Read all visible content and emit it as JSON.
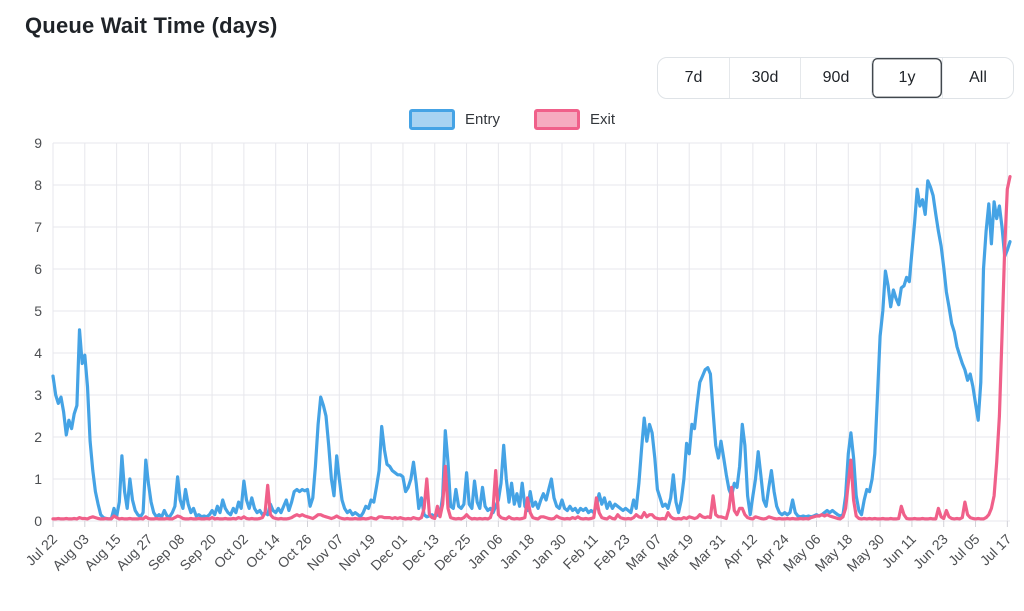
{
  "page": {
    "title": "Queue Wait Time (days)"
  },
  "range_selector": {
    "options": [
      "7d",
      "30d",
      "90d",
      "1y",
      "All"
    ],
    "active": "1y"
  },
  "colors": {
    "entry_line": "#45a3e5",
    "entry_fill": "#a8d3f2",
    "exit_line": "#f0608a",
    "exit_fill": "#f6abc0",
    "grid": "#e7e7ec",
    "tick_text": "#4d4f52",
    "tick_mark": "#d2d2d8"
  },
  "chart_data": {
    "type": "line",
    "title": "Queue Wait Time (days)",
    "xlabel": "",
    "ylabel": "",
    "ylim": [
      0,
      9
    ],
    "y_ticks": [
      0,
      1,
      2,
      3,
      4,
      5,
      6,
      7,
      8,
      9
    ],
    "grid": true,
    "legend_position": "top",
    "x_unit": "day",
    "points_per_tick": 12,
    "x_tick_labels": [
      "Jul 22",
      "Aug 03",
      "Aug 15",
      "Aug 27",
      "Sep 08",
      "Sep 20",
      "Oct 02",
      "Oct 14",
      "Oct 26",
      "Nov 07",
      "Nov 19",
      "Dec 01",
      "Dec 13",
      "Dec 25",
      "Jan 06",
      "Jan 18",
      "Jan 30",
      "Feb 11",
      "Feb 23",
      "Mar 07",
      "Mar 19",
      "Mar 31",
      "Apr 12",
      "Apr 24",
      "May 06",
      "May 18",
      "May 30",
      "Jun 11",
      "Jun 23",
      "Jul 05",
      "Jul 17"
    ],
    "series": [
      {
        "name": "Entry",
        "color": "#45a3e5",
        "fill_color": "#a8d3f2",
        "values": [
          3.45,
          3.0,
          2.8,
          2.95,
          2.6,
          2.05,
          2.4,
          2.2,
          2.55,
          2.75,
          4.55,
          3.75,
          3.95,
          3.2,
          1.9,
          1.2,
          0.7,
          0.4,
          0.15,
          0.08,
          0.06,
          0.05,
          0.05,
          0.3,
          0.1,
          0.45,
          1.55,
          0.7,
          0.3,
          1.0,
          0.5,
          0.25,
          0.15,
          0.1,
          0.2,
          1.45,
          0.9,
          0.45,
          0.2,
          0.1,
          0.15,
          0.1,
          0.25,
          0.12,
          0.1,
          0.2,
          0.35,
          1.05,
          0.5,
          0.3,
          0.75,
          0.4,
          0.2,
          0.3,
          0.12,
          0.15,
          0.1,
          0.12,
          0.1,
          0.15,
          0.25,
          0.15,
          0.35,
          0.2,
          0.5,
          0.3,
          0.2,
          0.15,
          0.3,
          0.2,
          0.45,
          0.3,
          0.95,
          0.5,
          0.3,
          0.55,
          0.3,
          0.2,
          0.25,
          0.15,
          0.2,
          0.15,
          0.4,
          0.25,
          0.2,
          0.3,
          0.2,
          0.35,
          0.5,
          0.25,
          0.45,
          0.7,
          0.75,
          0.7,
          0.75,
          0.72,
          0.75,
          0.35,
          0.55,
          1.3,
          2.3,
          2.95,
          2.75,
          2.5,
          1.8,
          1.0,
          0.6,
          1.55,
          1.0,
          0.5,
          0.3,
          0.2,
          0.25,
          0.15,
          0.2,
          0.15,
          0.1,
          0.2,
          0.35,
          0.3,
          0.5,
          0.45,
          0.8,
          1.2,
          2.25,
          1.7,
          1.35,
          1.3,
          1.2,
          1.15,
          1.1,
          1.1,
          1.05,
          0.7,
          0.8,
          1.0,
          1.4,
          0.9,
          0.3,
          0.55,
          0.15,
          0.1,
          0.12,
          0.15,
          0.1,
          0.15,
          0.12,
          0.6,
          2.15,
          1.4,
          0.35,
          0.3,
          0.75,
          0.35,
          0.3,
          0.4,
          1.15,
          0.4,
          0.3,
          0.95,
          0.45,
          0.3,
          0.8,
          0.35,
          0.25,
          0.3,
          0.2,
          0.35,
          0.5,
          0.9,
          1.8,
          1.0,
          0.45,
          0.9,
          0.4,
          0.65,
          0.35,
          0.9,
          0.35,
          0.25,
          0.7,
          0.35,
          0.45,
          0.3,
          0.5,
          0.65,
          0.5,
          0.75,
          1.0,
          0.55,
          0.35,
          0.3,
          0.5,
          0.3,
          0.25,
          0.35,
          0.25,
          0.3,
          0.2,
          0.3,
          0.25,
          0.3,
          0.2,
          0.25,
          0.2,
          0.35,
          0.65,
          0.4,
          0.55,
          0.3,
          0.45,
          0.3,
          0.4,
          0.35,
          0.3,
          0.25,
          0.3,
          0.25,
          0.2,
          0.5,
          0.3,
          0.9,
          1.7,
          2.45,
          1.9,
          2.3,
          2.1,
          1.5,
          0.75,
          0.55,
          0.35,
          0.4,
          0.3,
          0.55,
          1.1,
          0.45,
          0.2,
          0.5,
          1.0,
          1.85,
          1.6,
          2.3,
          2.2,
          2.8,
          3.3,
          3.45,
          3.6,
          3.65,
          3.5,
          2.6,
          1.8,
          1.5,
          1.9,
          1.5,
          1.1,
          0.75,
          0.6,
          0.9,
          0.8,
          1.3,
          2.3,
          1.8,
          0.6,
          0.15,
          0.6,
          1.0,
          1.65,
          1.1,
          0.5,
          0.35,
          0.8,
          1.2,
          0.7,
          0.35,
          0.2,
          0.15,
          0.2,
          0.15,
          0.2,
          0.5,
          0.2,
          0.12,
          0.1,
          0.12,
          0.1,
          0.12,
          0.1,
          0.12,
          0.15,
          0.12,
          0.15,
          0.2,
          0.25,
          0.2,
          0.25,
          0.2,
          0.15,
          0.12,
          0.15,
          0.6,
          1.6,
          2.1,
          1.5,
          0.6,
          0.25,
          0.15,
          0.5,
          0.75,
          0.7,
          1.0,
          1.6,
          3.0,
          4.4,
          5.0,
          5.95,
          5.6,
          5.1,
          5.5,
          5.3,
          5.15,
          5.55,
          5.6,
          5.8,
          5.7,
          6.4,
          7.1,
          7.9,
          7.5,
          7.65,
          7.3,
          8.1,
          7.95,
          7.75,
          7.3,
          6.9,
          6.55,
          6.05,
          5.45,
          5.1,
          4.7,
          4.5,
          4.15,
          3.95,
          3.75,
          3.6,
          3.35,
          3.5,
          3.2,
          2.8,
          2.4,
          3.3,
          6.0,
          6.9,
          7.55,
          6.6,
          7.6,
          7.2,
          7.5,
          7.0,
          6.3,
          6.45,
          6.65
        ]
      },
      {
        "name": "Exit",
        "color": "#f0608a",
        "fill_color": "#f6abc0",
        "values": [
          0.05,
          0.05,
          0.06,
          0.05,
          0.05,
          0.06,
          0.05,
          0.05,
          0.06,
          0.05,
          0.08,
          0.06,
          0.06,
          0.05,
          0.08,
          0.1,
          0.08,
          0.06,
          0.05,
          0.05,
          0.06,
          0.05,
          0.05,
          0.12,
          0.08,
          0.05,
          0.06,
          0.05,
          0.05,
          0.06,
          0.05,
          0.05,
          0.05,
          0.06,
          0.05,
          0.1,
          0.06,
          0.05,
          0.05,
          0.06,
          0.05,
          0.05,
          0.05,
          0.06,
          0.05,
          0.05,
          0.08,
          0.12,
          0.1,
          0.06,
          0.05,
          0.05,
          0.06,
          0.05,
          0.05,
          0.06,
          0.05,
          0.05,
          0.06,
          0.05,
          0.08,
          0.05,
          0.06,
          0.05,
          0.05,
          0.06,
          0.05,
          0.05,
          0.06,
          0.05,
          0.08,
          0.06,
          0.1,
          0.06,
          0.05,
          0.06,
          0.05,
          0.05,
          0.06,
          0.08,
          0.2,
          0.85,
          0.15,
          0.08,
          0.06,
          0.05,
          0.06,
          0.05,
          0.05,
          0.06,
          0.08,
          0.12,
          0.15,
          0.12,
          0.15,
          0.12,
          0.1,
          0.08,
          0.06,
          0.1,
          0.15,
          0.15,
          0.12,
          0.1,
          0.08,
          0.06,
          0.08,
          0.12,
          0.08,
          0.06,
          0.05,
          0.06,
          0.05,
          0.05,
          0.06,
          0.05,
          0.05,
          0.06,
          0.05,
          0.06,
          0.08,
          0.06,
          0.05,
          0.1,
          0.1,
          0.08,
          0.08,
          0.08,
          0.06,
          0.08,
          0.06,
          0.08,
          0.06,
          0.05,
          0.06,
          0.05,
          0.08,
          0.06,
          0.05,
          0.08,
          0.3,
          1.0,
          0.15,
          0.08,
          0.06,
          0.35,
          0.1,
          0.4,
          1.3,
          0.3,
          0.08,
          0.06,
          0.05,
          0.06,
          0.05,
          0.08,
          0.15,
          0.08,
          0.05,
          0.06,
          0.05,
          0.06,
          0.05,
          0.06,
          0.05,
          0.08,
          0.3,
          1.2,
          0.15,
          0.08,
          0.06,
          0.05,
          0.1,
          0.06,
          0.05,
          0.06,
          0.05,
          0.06,
          0.08,
          0.55,
          0.2,
          0.08,
          0.06,
          0.05,
          0.1,
          0.1,
          0.08,
          0.06,
          0.05,
          0.06,
          0.12,
          0.08,
          0.06,
          0.05,
          0.06,
          0.05,
          0.08,
          0.06,
          0.1,
          0.06,
          0.05,
          0.06,
          0.05,
          0.06,
          0.08,
          0.55,
          0.2,
          0.08,
          0.06,
          0.05,
          0.1,
          0.06,
          0.05,
          0.15,
          0.08,
          0.06,
          0.05,
          0.06,
          0.05,
          0.08,
          0.15,
          0.1,
          0.08,
          0.2,
          0.1,
          0.15,
          0.15,
          0.08,
          0.06,
          0.05,
          0.06,
          0.05,
          0.2,
          0.1,
          0.06,
          0.05,
          0.06,
          0.05,
          0.08,
          0.06,
          0.1,
          0.08,
          0.06,
          0.08,
          0.15,
          0.1,
          0.08,
          0.1,
          0.08,
          0.6,
          0.15,
          0.1,
          0.1,
          0.08,
          0.06,
          0.3,
          0.8,
          0.25,
          0.15,
          0.3,
          0.3,
          0.15,
          0.08,
          0.06,
          0.05,
          0.1,
          0.08,
          0.06,
          0.05,
          0.06,
          0.1,
          0.08,
          0.06,
          0.05,
          0.06,
          0.05,
          0.05,
          0.06,
          0.05,
          0.06,
          0.05,
          0.05,
          0.06,
          0.05,
          0.06,
          0.05,
          0.08,
          0.1,
          0.12,
          0.12,
          0.15,
          0.12,
          0.15,
          0.12,
          0.1,
          0.08,
          0.06,
          0.05,
          0.1,
          0.3,
          0.9,
          1.45,
          0.5,
          0.12,
          0.06,
          0.05,
          0.06,
          0.05,
          0.06,
          0.05,
          0.06,
          0.05,
          0.05,
          0.06,
          0.05,
          0.05,
          0.06,
          0.05,
          0.05,
          0.06,
          0.35,
          0.15,
          0.06,
          0.05,
          0.05,
          0.06,
          0.05,
          0.05,
          0.06,
          0.05,
          0.05,
          0.06,
          0.05,
          0.05,
          0.3,
          0.1,
          0.06,
          0.25,
          0.1,
          0.06,
          0.05,
          0.06,
          0.05,
          0.08,
          0.45,
          0.15,
          0.08,
          0.06,
          0.05,
          0.06,
          0.05,
          0.05,
          0.08,
          0.15,
          0.3,
          0.6,
          1.4,
          2.5,
          4.4,
          6.5,
          7.9,
          8.2
        ]
      }
    ]
  }
}
